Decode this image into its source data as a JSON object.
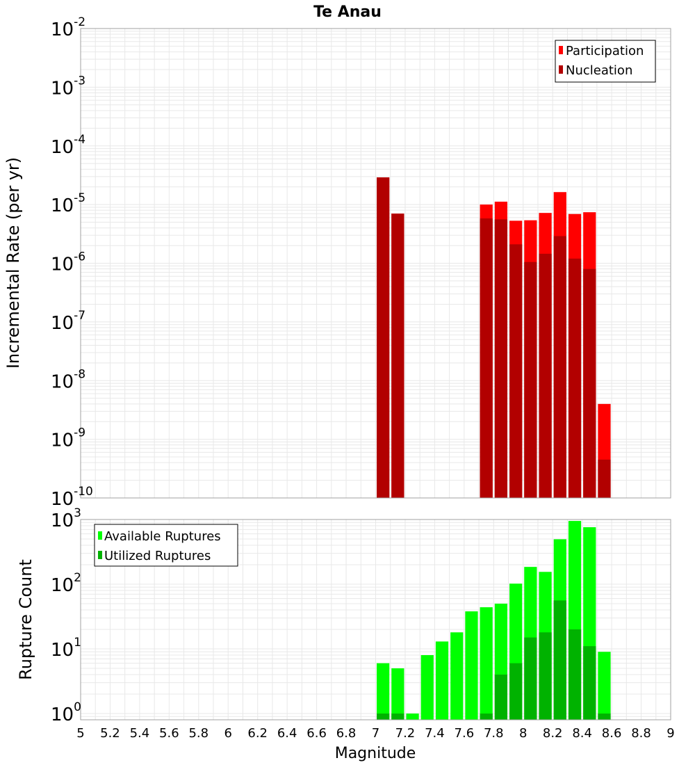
{
  "title": "Te Anau",
  "xlabel": "Magnitude",
  "x_tick_labels": [
    "5",
    "5.2",
    "5.4",
    "5.6",
    "5.8",
    "6",
    "6.2",
    "6.4",
    "6.6",
    "6.8",
    "7",
    "7.2",
    "7.4",
    "7.6",
    "7.8",
    "8",
    "8.2",
    "8.4",
    "8.6",
    "8.8",
    "9"
  ],
  "colors": {
    "participation": "#ff0000",
    "nucleation": "#b20000",
    "available": "#00ff00",
    "utilized": "#00b200",
    "grid": "#e8e8e8",
    "axis_border": "#a0a0a0"
  },
  "chart_data": [
    {
      "type": "bar",
      "scale": "log",
      "ylabel": "Incremental Rate (per yr)",
      "xlim": [
        5,
        9
      ],
      "ylim": [
        1e-10,
        0.01
      ],
      "y_tick_exponents": [
        "-2",
        "-3",
        "-4",
        "-5",
        "-6",
        "-7",
        "-8",
        "-9",
        "-10"
      ],
      "legend_position": "top-right",
      "legend": [
        "Participation",
        "Nucleation"
      ],
      "x": [
        7.05,
        7.15,
        7.75,
        7.85,
        7.95,
        8.05,
        8.15,
        8.25,
        8.35,
        8.45,
        8.55
      ],
      "series": [
        {
          "name": "Participation",
          "values": [
            2.9e-05,
            7e-06,
            1e-05,
            1.12e-05,
            5.3e-06,
            5.4e-06,
            7.2e-06,
            1.63e-05,
            6.9e-06,
            7.4e-06,
            4e-09
          ]
        },
        {
          "name": "Nucleation",
          "values": [
            2.9e-05,
            7e-06,
            5.8e-06,
            5.6e-06,
            2.1e-06,
            1.05e-06,
            1.45e-06,
            2.9e-06,
            1.2e-06,
            8e-07,
            4.5e-10
          ]
        }
      ]
    },
    {
      "type": "bar",
      "scale": "log",
      "ylabel": "Rupture Count",
      "xlim": [
        5,
        9
      ],
      "ylim": [
        0.8,
        1000
      ],
      "y_tick_exponents": [
        "3",
        "2",
        "1",
        "0"
      ],
      "legend_position": "top-left",
      "legend": [
        "Available Ruptures",
        "Utilized Ruptures"
      ],
      "x": [
        7.05,
        7.15,
        7.25,
        7.35,
        7.45,
        7.55,
        7.65,
        7.75,
        7.85,
        7.95,
        8.05,
        8.15,
        8.25,
        8.35,
        8.45,
        8.55
      ],
      "series": [
        {
          "name": "Available Ruptures",
          "values": [
            6,
            5,
            1,
            8,
            13,
            18,
            38,
            44,
            50,
            102,
            185,
            155,
            495,
            950,
            760,
            9
          ]
        },
        {
          "name": "Utilized Ruptures",
          "values": [
            1,
            1,
            0,
            0,
            0,
            0,
            0,
            1,
            4,
            6,
            15,
            18,
            56,
            20,
            11,
            1
          ]
        }
      ]
    }
  ]
}
